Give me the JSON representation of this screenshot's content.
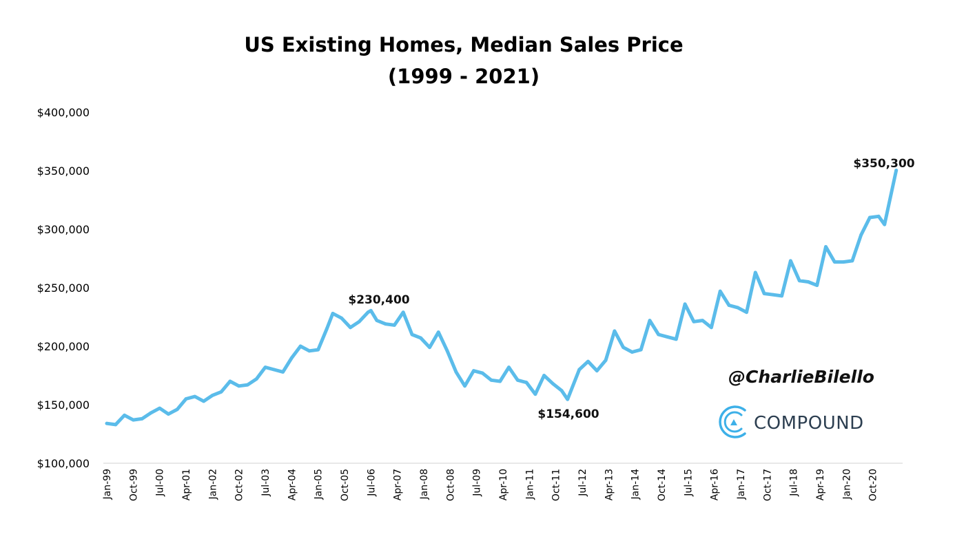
{
  "colors": {
    "line": "#5bbcea",
    "text": "#000000",
    "brand": "#2c3e50",
    "logo": "#3db0e8"
  },
  "watermark": {
    "handle": "@CharlieBilello",
    "brand": "COMPOUND"
  },
  "chart_data": {
    "type": "line",
    "title": "US Existing Homes, Median Sales Price",
    "subtitle": "(1999 - 2021)",
    "xlabel": "",
    "ylabel": "",
    "ylim": [
      100000,
      400000
    ],
    "yticks": [
      100000,
      150000,
      200000,
      250000,
      300000,
      350000,
      400000
    ],
    "ytick_labels": [
      "$100,000",
      "$150,000",
      "$200,000",
      "$250,000",
      "$300,000",
      "$350,000",
      "$400,000"
    ],
    "xticks": [
      "Jan-99",
      "Oct-99",
      "Jul-00",
      "Apr-01",
      "Jan-02",
      "Oct-02",
      "Jul-03",
      "Apr-04",
      "Jan-05",
      "Oct-05",
      "Jul-06",
      "Apr-07",
      "Jan-08",
      "Oct-08",
      "Jul-09",
      "Apr-10",
      "Jan-11",
      "Oct-11",
      "Jul-12",
      "Apr-13",
      "Jan-14",
      "Oct-14",
      "Jul-15",
      "Apr-16",
      "Jan-17",
      "Oct-17",
      "Jul-18",
      "Apr-19",
      "Jan-20",
      "Oct-20"
    ],
    "grid": false,
    "legend": "none",
    "x": [
      "1999-01",
      "1999-04",
      "1999-07",
      "1999-10",
      "2000-01",
      "2000-04",
      "2000-07",
      "2000-10",
      "2001-01",
      "2001-04",
      "2001-07",
      "2001-10",
      "2002-01",
      "2002-04",
      "2002-07",
      "2002-10",
      "2003-01",
      "2003-04",
      "2003-07",
      "2003-10",
      "2004-01",
      "2004-04",
      "2004-07",
      "2004-10",
      "2005-01",
      "2005-04",
      "2005-06",
      "2005-09",
      "2005-12",
      "2006-03",
      "2006-06",
      "2006-07",
      "2006-09",
      "2006-12",
      "2007-03",
      "2007-06",
      "2007-09",
      "2007-12",
      "2008-03",
      "2008-06",
      "2008-09",
      "2008-12",
      "2009-03",
      "2009-06",
      "2009-09",
      "2009-12",
      "2010-03",
      "2010-06",
      "2010-09",
      "2010-12",
      "2011-03",
      "2011-06",
      "2011-09",
      "2011-12",
      "2012-02",
      "2012-06",
      "2012-09",
      "2012-12",
      "2013-03",
      "2013-06",
      "2013-09",
      "2013-12",
      "2014-03",
      "2014-06",
      "2014-09",
      "2014-12",
      "2015-03",
      "2015-06",
      "2015-09",
      "2015-12",
      "2016-03",
      "2016-06",
      "2016-09",
      "2016-12",
      "2017-03",
      "2017-06",
      "2017-09",
      "2017-12",
      "2018-03",
      "2018-06",
      "2018-09",
      "2018-12",
      "2019-03",
      "2019-06",
      "2019-09",
      "2019-12",
      "2020-03",
      "2020-06",
      "2020-09",
      "2020-12",
      "2021-02",
      "2021-06"
    ],
    "series": [
      {
        "values": [
          134000,
          133000,
          141000,
          137000,
          138000,
          143000,
          147000,
          142000,
          146000,
          155000,
          157000,
          153000,
          158000,
          161000,
          170000,
          166000,
          167000,
          172000,
          182000,
          180000,
          178000,
          190000,
          200000,
          196000,
          197000,
          215000,
          228000,
          224000,
          216000,
          221000,
          229000,
          230400,
          222000,
          219000,
          218000,
          229000,
          210000,
          207000,
          199000,
          212000,
          196000,
          178000,
          166000,
          179000,
          177000,
          171000,
          170000,
          182000,
          171000,
          169000,
          159000,
          175000,
          168000,
          162000,
          154600,
          180000,
          187000,
          179000,
          188000,
          213000,
          199000,
          195000,
          197000,
          222000,
          210000,
          208000,
          206000,
          236000,
          221000,
          222000,
          216000,
          247000,
          235000,
          233000,
          229000,
          263000,
          245000,
          244000,
          243000,
          273000,
          256000,
          255000,
          252000,
          285000,
          272000,
          272000,
          273000,
          295000,
          310000,
          311000,
          304000,
          350300
        ]
      }
    ],
    "annotations": [
      "$230,400",
      "$154,600",
      "$350,300"
    ]
  }
}
